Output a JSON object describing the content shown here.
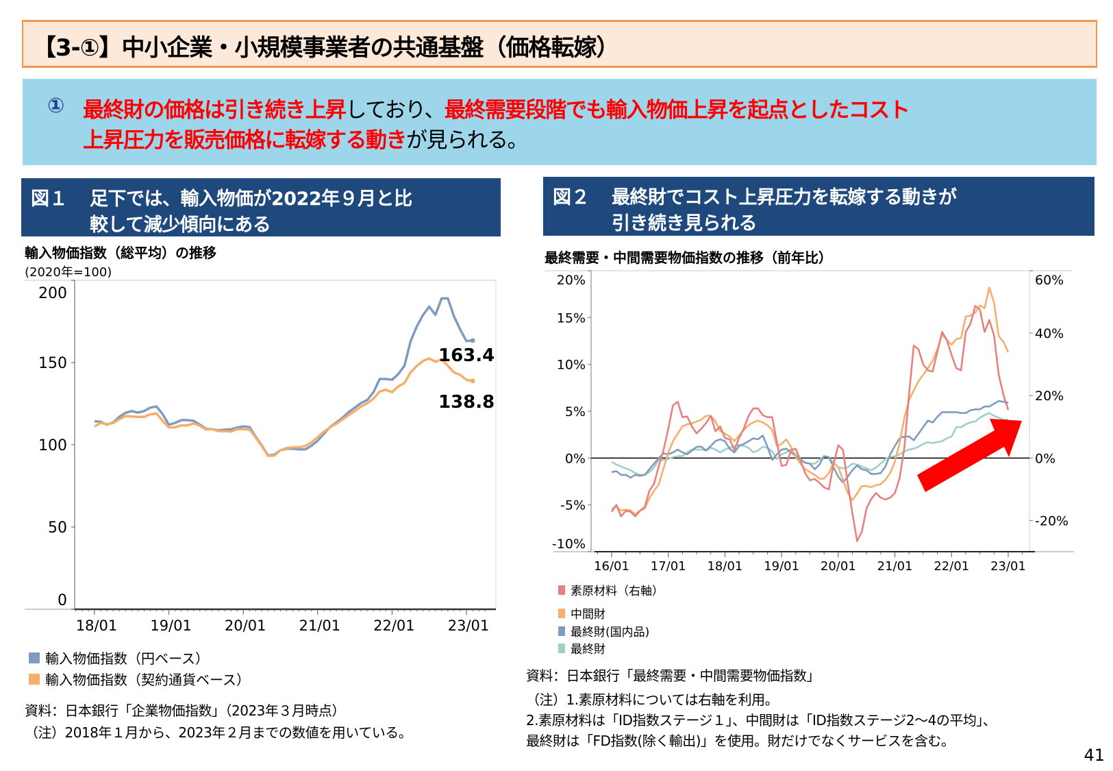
{
  "title": "【3-①】中小企業・小規模事業者の共通基盤（価格転嫁）",
  "summary": {
    "number": "①",
    "lines": [
      [
        {
          "text": "最終財の価格は引き続き上昇",
          "emphasis": true
        },
        {
          "text": "しており、",
          "emphasis": false
        },
        {
          "text": "最終需要段階でも輸入物価上昇を起点としたコスト",
          "emphasis": true
        }
      ],
      [
        {
          "text": "上昇圧力を販売価格に転嫁する動き",
          "emphasis": true
        },
        {
          "text": "が見られる。",
          "emphasis": false
        }
      ]
    ],
    "colors": {
      "emphasis": "#FF0000",
      "number": "#1F3F8F",
      "background": "#9DD5EA"
    }
  },
  "figure1": {
    "label": "図１",
    "lines": [
      "足下では、輸入物価が2022年９月と比",
      "較して減少傾向にある"
    ],
    "chart_title": "輸入物価指数（総平均）の推移",
    "unit_note": "(2020年=100)",
    "source": "資料：日本銀行「企業物価指数」（2023年３月時点）",
    "note": "（注）2018年１月から、2023年２月までの数値を用いている。"
  },
  "figure2": {
    "label": "図２",
    "lines": [
      "最終財でコスト上昇圧力を転嫁する動きが",
      "引き続き見られる"
    ],
    "chart_title": "最終需要・中間需要物価指数の推移（前年比）",
    "source": "資料：日本銀行「最終需要・中間需要物価指数」",
    "notes": [
      "（注）1.素原材料については右軸を利用。",
      "2.素原材料は「ID指数ステージ１」、中間財は「ID指数ステージ2～4の平均」、",
      "最終財は「FD指数(除く輸出)」を使用。財だけでなくサービスを含む。"
    ]
  },
  "page_number": "41",
  "chart_data": [
    {
      "type": "line",
      "title": "輸入物価指数（総平均）の推移",
      "ylabel": "(2020年=100)",
      "x_start": "2018-01",
      "x_end": "2023-02",
      "x_frequency": "monthly",
      "x_tick_labels": [
        "18/01",
        "19/01",
        "20/01",
        "21/01",
        "22/01",
        "23/01"
      ],
      "ylim": [
        0,
        200
      ],
      "y_ticks": [
        0,
        50,
        100,
        150,
        200
      ],
      "grid": false,
      "legend_position": "bottom-left",
      "annotations": [
        {
          "text": "163.4",
          "series": 0
        },
        {
          "text": "138.8",
          "series": 1
        }
      ],
      "series": [
        {
          "name": "輸入物価指数（円ベース）",
          "color": "#7F9CC0",
          "values": [
            114.3,
            114,
            112.2,
            113.6,
            117,
            119.4,
            120.5,
            119.6,
            120.5,
            122.6,
            123.3,
            118.5,
            112.2,
            113.3,
            115,
            115,
            114.6,
            112.2,
            109.7,
            109.4,
            108.8,
            109.2,
            109.4,
            110.4,
            111.2,
            110.8,
            105,
            99.4,
            93.5,
            94,
            96.7,
            97.6,
            97.6,
            97.2,
            97.2,
            99.4,
            102.5,
            106.7,
            110.8,
            113.6,
            116.4,
            119.9,
            122.6,
            125.4,
            127.2,
            132,
            140,
            140,
            139.5,
            143,
            148,
            163,
            172,
            179,
            184,
            179,
            189,
            189,
            178,
            170,
            163,
            163.4
          ]
        },
        {
          "name": "輸入物価指数（契約通貨ベース）",
          "color": "#F5AE6B",
          "values": [
            111.1,
            113.3,
            112.5,
            113.3,
            115.5,
            117.5,
            117.2,
            117,
            117,
            118.5,
            119,
            114.5,
            110.5,
            110.6,
            111.8,
            111.8,
            113,
            111.5,
            109.2,
            109.5,
            108.3,
            108.3,
            108,
            109.5,
            109.5,
            109.2,
            104.5,
            99,
            93.2,
            93.4,
            96.7,
            98,
            98.5,
            98.5,
            99.2,
            101.5,
            104.7,
            108,
            110.5,
            112.8,
            115.3,
            118,
            120.6,
            123.3,
            125.2,
            128,
            132.4,
            133.5,
            131.9,
            135.5,
            137.5,
            144,
            148,
            151,
            152.5,
            150.5,
            152,
            148,
            144,
            142.5,
            139.5,
            138.8
          ]
        }
      ]
    },
    {
      "type": "line",
      "title": "最終需要・中間需要物価指数の推移（前年比）",
      "x_start": "2016-01",
      "x_end": "2023-01",
      "x_frequency": "monthly",
      "x_tick_labels": [
        "16/01",
        "17/01",
        "18/01",
        "19/01",
        "20/01",
        "21/01",
        "22/01",
        "23/01"
      ],
      "ylim_left": [
        -10,
        20
      ],
      "y_ticks_left": [
        "-10%",
        "-5%",
        "0%",
        "5%",
        "10%",
        "15%",
        "20%"
      ],
      "y_tick_values_left": [
        -10,
        -5,
        0,
        5,
        10,
        15,
        20
      ],
      "ylim_right": [
        -30,
        60
      ],
      "y_ticks_right": [
        "-20%",
        "0%",
        "20%",
        "40%",
        "60%"
      ],
      "y_tick_values_right": [
        -20,
        0,
        20,
        40,
        60
      ],
      "grid": false,
      "legend_position": "bottom-left",
      "annotation": "red upward arrow",
      "arrow_color": "#FF0000",
      "series": [
        {
          "name": "素原材料（右軸）",
          "axis": "right",
          "color": "#E8817E",
          "values": [
            -17.2,
            -15,
            -18.7,
            -16.9,
            -17.2,
            -18.7,
            -16.9,
            -15.7,
            -10.5,
            -8.2,
            -2.6,
            2.6,
            9.4,
            16.9,
            18,
            13.1,
            13.3,
            10.1,
            7.9,
            9.4,
            11.2,
            13.5,
            8.6,
            10.1,
            6.4,
            6,
            2.6,
            6.4,
            9.4,
            13.5,
            15.9,
            15.9,
            13.7,
            13.1,
            13.1,
            4.9,
            -2.5,
            -2.2,
            2.6,
            3,
            -0.7,
            -4.9,
            -7.1,
            -6.7,
            -7.9,
            -9.4,
            -10.1,
            -1.9,
            4.1,
            2.6,
            -7.9,
            -17.6,
            -26.6,
            -23.6,
            -16.1,
            -13.1,
            -11.2,
            -12.7,
            -13.3,
            -12.7,
            -11.2,
            -6.4,
            3.4,
            20.6,
            36,
            34.8,
            30,
            28.1,
            27.7,
            34.1,
            40.4,
            37.8,
            33,
            28.8,
            28.1,
            40.4,
            43,
            48.7,
            47.6,
            40.4,
            44.2,
            39.3,
            26.6,
            20.2,
            15.4
          ]
        },
        {
          "name": "中間財",
          "axis": "left",
          "color": "#F5AE6B",
          "values": [
            -5.4,
            -5.2,
            -5.6,
            -5.5,
            -5.6,
            -6,
            -5.6,
            -5.4,
            -4.3,
            -3.5,
            -2.8,
            -1.1,
            0.6,
            1.8,
            2.6,
            3.4,
            3.6,
            3.7,
            3.9,
            4.1,
            4.5,
            4.5,
            3.9,
            2.9,
            2.6,
            2.3,
            1.8,
            2.4,
            3,
            3.5,
            3.8,
            4,
            3.8,
            3.5,
            3,
            1.3,
            1.5,
            2,
            1.2,
            0.1,
            -0.6,
            -1.2,
            -1.5,
            -1.8,
            -2.2,
            -2.2,
            -1.6,
            -0.5,
            -1,
            -2.3,
            -3.7,
            -4.5,
            -3.8,
            -3,
            -3,
            -3.1,
            -2.9,
            -2.8,
            -2.3,
            -1.6,
            -0.4,
            1.6,
            4.3,
            6.2,
            7.2,
            8.2,
            8.9,
            9.6,
            10.4,
            11.6,
            13.2,
            12.6,
            12.1,
            12.7,
            12.8,
            15.1,
            15.2,
            15.5,
            16.3,
            16,
            18.2,
            16.6,
            13,
            12.4,
            11.3
          ]
        },
        {
          "name": "最終財(国内品)",
          "axis": "left",
          "color": "#7F9CC0",
          "values": [
            -1.5,
            -1.4,
            -1.8,
            -1.8,
            -2.1,
            -1.8,
            -1.9,
            -1.8,
            -1.2,
            -0.6,
            0,
            0.5,
            0.4,
            0.6,
            0.9,
            0.6,
            0.4,
            0.8,
            1.2,
            1.2,
            0.8,
            1.3,
            1.8,
            2,
            1.8,
            1,
            0.6,
            1.3,
            1.5,
            1.8,
            2.1,
            2,
            2.4,
            1.2,
            -0.2,
            0.4,
            0.9,
            1,
            0.6,
            0.2,
            -0.2,
            -0.5,
            -0.6,
            -1.2,
            -0.7,
            0.2,
            0.1,
            -1,
            -2,
            -2.6,
            -2,
            -1.3,
            -0.8,
            -1.2,
            -1.3,
            -1.7,
            -1.7,
            -1.6,
            -0.9,
            0.4,
            1.3,
            2.1,
            2.3,
            2.3,
            1.9,
            2.6,
            3.3,
            4,
            3.8,
            4.4,
            4.9,
            4.9,
            4.9,
            4.9,
            4.8,
            4.8,
            5.1,
            5.2,
            5.2,
            5.5,
            5.5,
            5.8,
            6.1,
            6,
            5.9
          ]
        },
        {
          "name": "最終財",
          "axis": "left",
          "color": "#9ECFC8",
          "values": [
            -0.4,
            -0.7,
            -0.9,
            -1.1,
            -1.3,
            -1.6,
            -1.8,
            -1.8,
            -1.5,
            -1,
            -0.2,
            -0.2,
            -0.1,
            0.1,
            0.2,
            0.2,
            0.6,
            0.9,
            0.9,
            0.9,
            0.8,
            1.1,
            0.9,
            0.6,
            0.9,
            1.1,
            1.3,
            1.4,
            1.3,
            1.1,
            0.6,
            0.8,
            1.2,
            1.1,
            0.7,
            -0.1,
            0.4,
            0.6,
            0.9,
            0.4,
            -0.1,
            -0.5,
            -0.6,
            -0.6,
            -0.2,
            0.2,
            0.1,
            -0.5,
            -1,
            -1.1,
            -1,
            -0.6,
            -0.7,
            -0.9,
            -1.1,
            -1.3,
            -1,
            -0.6,
            -0.1,
            0.1,
            0.2,
            0.4,
            0.7,
            0.9,
            1,
            1.2,
            1.5,
            1.7,
            1.6,
            1.7,
            1.8,
            2.1,
            2.3,
            3.3,
            3.3,
            3.6,
            3.8,
            3.9,
            4.3,
            4.6,
            4.8,
            4.5,
            4.3,
            4.1,
            4.1
          ]
        }
      ]
    }
  ]
}
